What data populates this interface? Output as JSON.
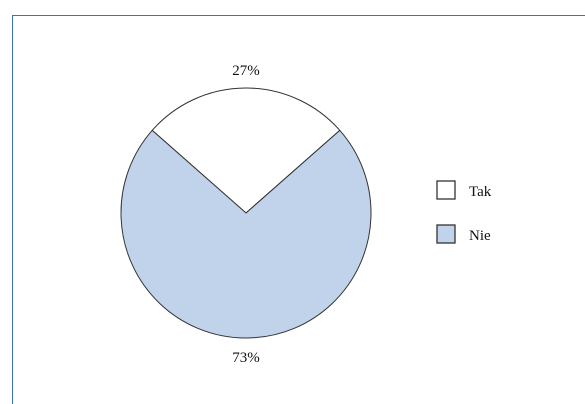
{
  "chart_data": {
    "type": "pie",
    "title": "",
    "slices": [
      {
        "label": "Tak",
        "value": 27,
        "value_label": "27%",
        "color": "#ffffff"
      },
      {
        "label": "Nie",
        "value": 73,
        "value_label": "73%",
        "color": "#c1d3ea"
      }
    ],
    "legend": {
      "placement": "right"
    }
  },
  "colors": {
    "frame": "#3b73b9",
    "stroke": "#333333"
  }
}
